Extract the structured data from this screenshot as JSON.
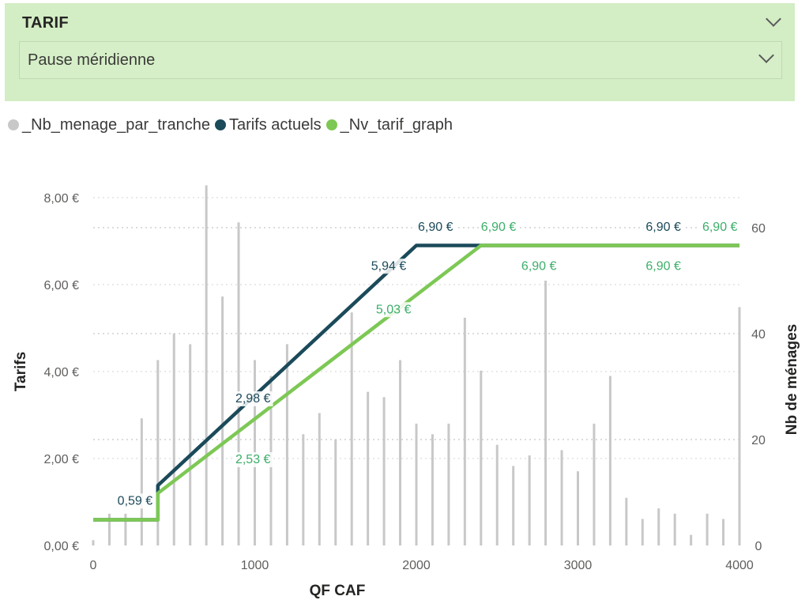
{
  "slicer": {
    "title": "TARIF",
    "selected": "Pause méridienne"
  },
  "legend": [
    {
      "label": "_Nb_menage_par_tranche",
      "color": "#c8c8c8"
    },
    {
      "label": "Tarifs actuels",
      "color": "#1b4a5a"
    },
    {
      "label": "_Nv_tarif_graph",
      "color": "#7dc855"
    }
  ],
  "chart_data": {
    "type": "bar+line",
    "xlabel": "QF CAF",
    "ylabel_left": "Tarifs",
    "ylabel_right": "Nb de ménages",
    "x_ticks": [
      "0",
      "1000",
      "2000",
      "3000",
      "4000"
    ],
    "y_left_ticks": [
      "0,00 €",
      "2,00 €",
      "4,00 €",
      "6,00 €",
      "8,00 €"
    ],
    "y_right_ticks": [
      "0",
      "20",
      "40",
      "60"
    ],
    "xlim": [
      0,
      4000
    ],
    "ylim_left": [
      0,
      8
    ],
    "ylim_right": [
      0,
      60
    ],
    "grid": true,
    "legend_position": "top-left",
    "bars": {
      "name": "_Nb_menage_par_tranche",
      "color": "#c8c8c8",
      "x": [
        0,
        100,
        200,
        300,
        400,
        500,
        600,
        700,
        800,
        900,
        1000,
        1100,
        1200,
        1300,
        1400,
        1500,
        1600,
        1700,
        1800,
        1900,
        2000,
        2100,
        2200,
        2300,
        2400,
        2500,
        2600,
        2700,
        2800,
        2900,
        3000,
        3100,
        3200,
        3300,
        3400,
        3500,
        3600,
        3700,
        3800,
        3900,
        4000
      ],
      "values": [
        1,
        6,
        6,
        24,
        35,
        40,
        38,
        68,
        47,
        61,
        35,
        32,
        38,
        21,
        25,
        20,
        44,
        29,
        28,
        35,
        23,
        21,
        23,
        43,
        33,
        19,
        15,
        17,
        50,
        18,
        14,
        23,
        32,
        9,
        5,
        7,
        6,
        2,
        6,
        5,
        45
      ]
    },
    "series": [
      {
        "name": "Tarifs actuels",
        "color": "#1b4a5a",
        "x": [
          0,
          400,
          400,
          2000,
          4000
        ],
        "values": [
          0.59,
          0.59,
          1.38,
          6.9,
          6.9
        ]
      },
      {
        "name": "_Nv_tarif_graph",
        "color": "#7dc855",
        "x": [
          0,
          400,
          400,
          2400,
          4000
        ],
        "values": [
          0.59,
          0.59,
          1.2,
          6.9,
          6.9
        ]
      }
    ],
    "data_labels": [
      {
        "series": "Tarifs actuels",
        "text": "0,59 €",
        "x": 150,
        "y": 1.05
      },
      {
        "series": "Tarifs actuels",
        "text": "2,98 €",
        "x": 880,
        "y": 3.4
      },
      {
        "series": "Tarifs actuels",
        "text": "5,94 €",
        "x": 1720,
        "y": 6.45
      },
      {
        "series": "Tarifs actuels",
        "text": "6,90 €",
        "x": 2010,
        "y": 7.35
      },
      {
        "series": "Tarifs actuels",
        "text": "6,90 €",
        "x": 3420,
        "y": 7.35
      },
      {
        "series": "_Nv_tarif_graph",
        "text": "2,53 €",
        "x": 880,
        "y": 2.0
      },
      {
        "series": "_Nv_tarif_graph",
        "text": "5,03 €",
        "x": 1750,
        "y": 5.45
      },
      {
        "series": "_Nv_tarif_graph",
        "text": "6,90 €",
        "x": 2400,
        "y": 7.35
      },
      {
        "series": "_Nv_tarif_graph",
        "text": "6,90 €",
        "x": 2650,
        "y": 6.45
      },
      {
        "series": "_Nv_tarif_graph",
        "text": "6,90 €",
        "x": 3420,
        "y": 6.45
      },
      {
        "series": "_Nv_tarif_graph",
        "text": "6,90 €",
        "x": 3770,
        "y": 7.35
      }
    ]
  }
}
